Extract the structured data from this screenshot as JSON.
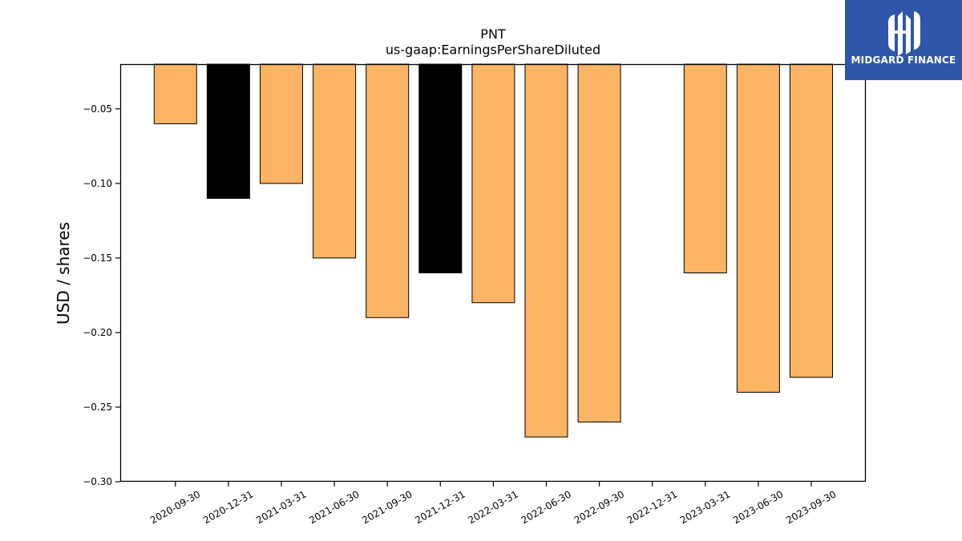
{
  "brand": {
    "name": "MIDGARD FINANCE",
    "background_color": "#2f56a8",
    "icon": "midgard-finance-logo"
  },
  "chart_data": {
    "type": "bar",
    "title": "PNT",
    "subtitle": "us-gaap:EarningsPerShareDiluted",
    "xlabel": "",
    "ylabel": "USD / shares",
    "ylim": [
      -0.3,
      -0.02
    ],
    "yticks": [
      -0.05,
      -0.1,
      -0.15,
      -0.2,
      -0.25,
      -0.3
    ],
    "ytick_labels": [
      "−0.05",
      "−0.10",
      "−0.15",
      "−0.20",
      "−0.25",
      "−0.30"
    ],
    "categories": [
      "2020-09-30",
      "2020-12-31",
      "2021-03-31",
      "2021-06-30",
      "2021-09-30",
      "2021-12-31",
      "2022-03-31",
      "2022-06-30",
      "2022-09-30",
      "2022-12-31",
      "2023-03-31",
      "2023-06-30",
      "2023-09-30"
    ],
    "values": [
      -0.06,
      -0.11,
      -0.1,
      -0.15,
      -0.19,
      -0.16,
      -0.18,
      -0.27,
      -0.26,
      null,
      -0.16,
      -0.24,
      -0.23
    ],
    "bar_colors": [
      "#fbb463",
      "#000000",
      "#fbb463",
      "#fbb463",
      "#fbb463",
      "#000000",
      "#fbb463",
      "#fbb463",
      "#fbb463",
      "#fbb463",
      "#fbb463",
      "#fbb463",
      "#fbb463"
    ],
    "grid": false,
    "legend": "none"
  }
}
